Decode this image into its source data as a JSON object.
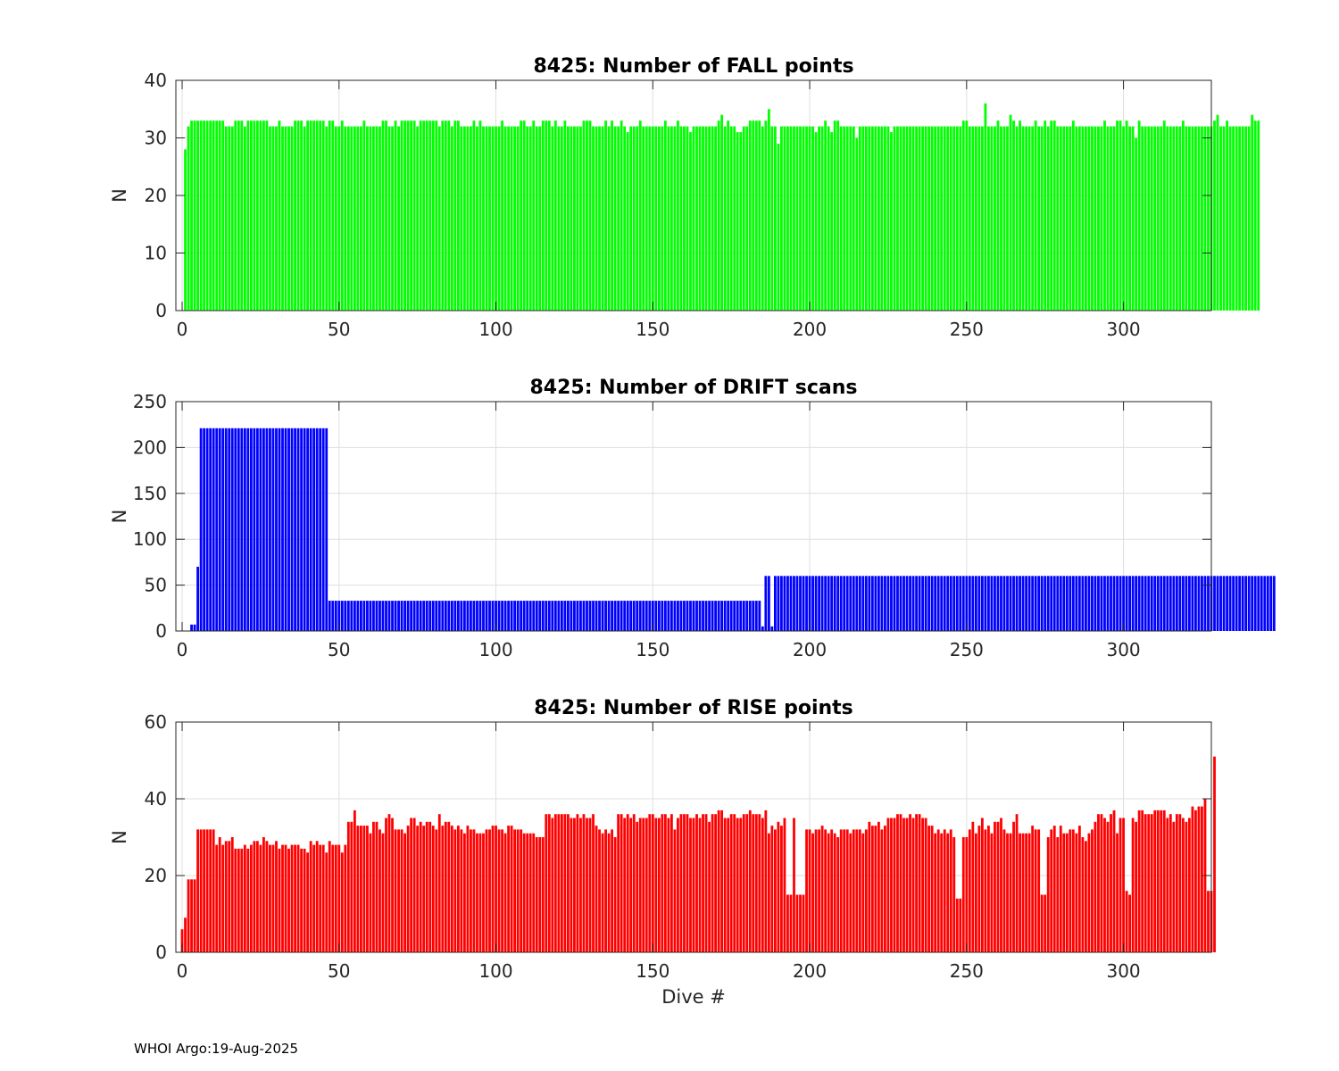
{
  "figure": {
    "footer": "WHOI Argo:19-Aug-2025"
  },
  "chart_data": [
    {
      "type": "bar",
      "id": "fall",
      "title": "8425: Number of FALL points",
      "xlabel": "",
      "ylabel": "N",
      "color": "#00ff00",
      "xlim": [
        -2,
        328
      ],
      "ylim": [
        0,
        40
      ],
      "xticks": [
        0,
        50,
        100,
        150,
        200,
        250,
        300
      ],
      "yticks": [
        0,
        10,
        20,
        30,
        40
      ],
      "grid": true,
      "x_start": 1,
      "values": [
        28,
        32,
        33,
        33,
        33,
        33,
        33,
        33,
        33,
        33,
        33,
        33,
        33,
        32,
        32,
        32,
        33,
        33,
        33,
        32,
        33,
        33,
        33,
        33,
        33,
        33,
        33,
        32,
        32,
        32,
        33,
        32,
        32,
        32,
        32,
        33,
        33,
        33,
        32,
        33,
        33,
        33,
        33,
        33,
        33,
        32,
        33,
        33,
        32,
        32,
        33,
        32,
        32,
        32,
        32,
        32,
        32,
        33,
        32,
        32,
        32,
        32,
        32,
        33,
        33,
        32,
        32,
        33,
        32,
        33,
        33,
        33,
        33,
        33,
        32,
        33,
        33,
        33,
        33,
        33,
        33,
        32,
        33,
        33,
        33,
        32,
        33,
        33,
        32,
        32,
        32,
        32,
        33,
        32,
        33,
        32,
        32,
        32,
        32,
        32,
        32,
        33,
        32,
        32,
        32,
        32,
        32,
        33,
        33,
        32,
        32,
        33,
        32,
        32,
        33,
        33,
        33,
        32,
        33,
        32,
        32,
        33,
        32,
        32,
        32,
        32,
        32,
        33,
        33,
        33,
        32,
        32,
        32,
        32,
        33,
        32,
        33,
        32,
        32,
        33,
        32,
        31,
        32,
        32,
        32,
        33,
        32,
        32,
        32,
        32,
        32,
        32,
        32,
        33,
        32,
        32,
        32,
        33,
        32,
        32,
        32,
        31,
        32,
        32,
        32,
        32,
        32,
        32,
        32,
        32,
        33,
        34,
        32,
        33,
        32,
        32,
        31,
        31,
        32,
        32,
        33,
        33,
        33,
        33,
        32,
        33,
        35,
        32,
        32,
        29,
        32,
        32,
        32,
        32,
        32,
        32,
        32,
        32,
        32,
        32,
        32,
        31,
        32,
        32,
        33,
        32,
        31,
        33,
        33,
        32,
        32,
        32,
        32,
        32,
        30,
        32,
        32,
        32,
        32,
        32,
        32,
        32,
        32,
        32,
        32,
        31,
        32,
        32,
        32,
        32,
        32,
        32,
        32,
        32,
        32,
        32,
        32,
        32,
        32,
        32,
        32,
        32,
        32,
        32,
        32,
        32,
        32,
        32,
        33,
        33,
        32,
        32,
        32,
        32,
        32,
        36,
        32,
        32,
        32,
        33,
        32,
        32,
        32,
        34,
        33,
        32,
        33,
        32,
        32,
        32,
        32,
        33,
        32,
        32,
        33,
        32,
        33,
        33,
        32,
        32,
        32,
        32,
        32,
        33,
        32,
        32,
        32,
        32,
        32,
        32,
        32,
        32,
        32,
        33,
        32,
        32,
        32,
        33,
        33,
        32,
        33,
        32,
        32,
        30,
        33,
        32,
        32,
        32,
        32,
        32,
        32,
        32,
        33,
        32,
        32,
        32,
        32,
        32,
        33,
        32,
        32,
        32,
        32,
        32,
        32,
        32,
        32,
        32,
        33,
        34,
        32,
        32,
        33,
        32,
        32,
        32,
        32,
        32,
        32,
        32,
        34,
        33,
        33
      ]
    },
    {
      "type": "bar",
      "id": "drift",
      "title": "8425: Number of DRIFT scans",
      "xlabel": "",
      "ylabel": "N",
      "color": "#0000ff",
      "xlim": [
        -2,
        328
      ],
      "ylim": [
        0,
        250
      ],
      "xticks": [
        0,
        50,
        100,
        150,
        200,
        250,
        300
      ],
      "yticks": [
        0,
        50,
        100,
        150,
        200,
        250
      ],
      "grid": true,
      "x_start": 1,
      "values": [
        0,
        0,
        7,
        7,
        70,
        221,
        221,
        221,
        221,
        221,
        221,
        221,
        221,
        221,
        221,
        221,
        221,
        221,
        221,
        221,
        221,
        221,
        221,
        221,
        221,
        221,
        221,
        221,
        221,
        221,
        221,
        221,
        221,
        221,
        221,
        221,
        221,
        221,
        221,
        221,
        221,
        221,
        221,
        221,
        221,
        221,
        33,
        33,
        33,
        33,
        33,
        33,
        33,
        33,
        33,
        33,
        33,
        33,
        33,
        33,
        33,
        33,
        33,
        33,
        33,
        33,
        33,
        33,
        33,
        33,
        33,
        33,
        33,
        33,
        33,
        33,
        33,
        33,
        33,
        33,
        33,
        33,
        33,
        33,
        33,
        33,
        33,
        33,
        33,
        33,
        33,
        33,
        33,
        33,
        33,
        33,
        33,
        33,
        33,
        33,
        33,
        33,
        33,
        33,
        33,
        33,
        33,
        33,
        33,
        33,
        33,
        33,
        33,
        33,
        33,
        33,
        33,
        33,
        33,
        33,
        33,
        33,
        33,
        33,
        33,
        33,
        33,
        33,
        33,
        33,
        33,
        33,
        33,
        33,
        33,
        33,
        33,
        33,
        33,
        33,
        33,
        33,
        33,
        33,
        33,
        33,
        33,
        33,
        33,
        33,
        33,
        33,
        33,
        33,
        33,
        33,
        33,
        33,
        33,
        33,
        33,
        33,
        33,
        33,
        33,
        33,
        33,
        33,
        33,
        33,
        33,
        33,
        33,
        33,
        33,
        33,
        33,
        33,
        33,
        33,
        33,
        33,
        33,
        33,
        5,
        60,
        60,
        5,
        60,
        60,
        60,
        60,
        60,
        60,
        60,
        60,
        60,
        60,
        60,
        60,
        60,
        60,
        60,
        60,
        60,
        60,
        60,
        60,
        60,
        60,
        60,
        60,
        60,
        60,
        60,
        60,
        60,
        60,
        60,
        60,
        60,
        60,
        60,
        60,
        60,
        60,
        60,
        60,
        60,
        60,
        60,
        60,
        60,
        60,
        60,
        60,
        60,
        60,
        60,
        60,
        60,
        60,
        60,
        60,
        60,
        60,
        60,
        60,
        60,
        60,
        60,
        60,
        60,
        60,
        60,
        60,
        60,
        60,
        60,
        60,
        60,
        60,
        60,
        60,
        60,
        60,
        60,
        60,
        60,
        60,
        60,
        60,
        60,
        60,
        60,
        60,
        60,
        60,
        60,
        60,
        60,
        60,
        60,
        60,
        60,
        60,
        60,
        60,
        60,
        60,
        60,
        60,
        60,
        60,
        60,
        60,
        60,
        60,
        60,
        60,
        60,
        60,
        60,
        60,
        60,
        60,
        60,
        60,
        60,
        60,
        60,
        60,
        60,
        60,
        60,
        60,
        60,
        60,
        60,
        60,
        60,
        60,
        60,
        60,
        60,
        60,
        60,
        60,
        60,
        60,
        60,
        60,
        60,
        60,
        60,
        60,
        60,
        60,
        60,
        60,
        60,
        60,
        60,
        60,
        60,
        60,
        60,
        60
      ]
    },
    {
      "type": "bar",
      "id": "rise",
      "title": "8425: Number of RISE points",
      "xlabel": "Dive #",
      "ylabel": "N",
      "color": "#ff0000",
      "xlim": [
        -2,
        328
      ],
      "ylim": [
        0,
        60
      ],
      "xticks": [
        0,
        50,
        100,
        150,
        200,
        250,
        300
      ],
      "yticks": [
        0,
        20,
        40,
        60
      ],
      "grid": true,
      "x_start": 0,
      "values": [
        6,
        9,
        19,
        19,
        19,
        32,
        32,
        32,
        32,
        32,
        32,
        28,
        30,
        28,
        29,
        29,
        30,
        27,
        27,
        27,
        28,
        27,
        28,
        29,
        29,
        28,
        30,
        29,
        28,
        28,
        29,
        27,
        28,
        28,
        27,
        28,
        28,
        28,
        27,
        27,
        26,
        29,
        28,
        29,
        28,
        28,
        26,
        29,
        28,
        28,
        28,
        26,
        28,
        34,
        34,
        37,
        33,
        33,
        33,
        33,
        31,
        34,
        34,
        32,
        31,
        35,
        36,
        35,
        32,
        32,
        32,
        31,
        33,
        35,
        35,
        33,
        34,
        33,
        34,
        34,
        33,
        32,
        36,
        33,
        34,
        34,
        33,
        32,
        33,
        32,
        31,
        33,
        32,
        32,
        31,
        31,
        31,
        32,
        32,
        33,
        33,
        32,
        32,
        31,
        33,
        33,
        32,
        32,
        32,
        31,
        31,
        31,
        31,
        30,
        30,
        30,
        36,
        36,
        35,
        36,
        36,
        36,
        36,
        36,
        35,
        35,
        36,
        35,
        36,
        35,
        35,
        36,
        33,
        32,
        31,
        32,
        31,
        32,
        30,
        36,
        36,
        35,
        36,
        35,
        36,
        34,
        35,
        35,
        35,
        36,
        36,
        35,
        35,
        36,
        36,
        35,
        36,
        32,
        35,
        36,
        36,
        36,
        35,
        35,
        36,
        35,
        36,
        36,
        34,
        36,
        36,
        37,
        37,
        35,
        35,
        36,
        36,
        35,
        35,
        36,
        36,
        37,
        36,
        36,
        36,
        35,
        37,
        31,
        33,
        32,
        34,
        33,
        35,
        15,
        15,
        35,
        15,
        15,
        15,
        32,
        32,
        31,
        32,
        32,
        33,
        32,
        31,
        32,
        31,
        30,
        32,
        32,
        32,
        31,
        32,
        32,
        32,
        31,
        32,
        34,
        33,
        33,
        34,
        32,
        33,
        35,
        35,
        35,
        36,
        36,
        35,
        35,
        36,
        35,
        36,
        36,
        35,
        35,
        33,
        33,
        31,
        32,
        31,
        32,
        31,
        32,
        30,
        14,
        14,
        30,
        30,
        32,
        34,
        31,
        33,
        35,
        32,
        33,
        31,
        34,
        34,
        35,
        32,
        31,
        31,
        34,
        36,
        31,
        31,
        31,
        31,
        33,
        32,
        32,
        15,
        15,
        30,
        32,
        33,
        30,
        33,
        31,
        31,
        32,
        32,
        31,
        33,
        30,
        29,
        31,
        32,
        34,
        36,
        36,
        35,
        34,
        36,
        37,
        31,
        35,
        35,
        16,
        15,
        35,
        34,
        37,
        37,
        36,
        36,
        36,
        37,
        37,
        37,
        37,
        35,
        36,
        34,
        36,
        36,
        35,
        34,
        35,
        38,
        37,
        38,
        38,
        40,
        16,
        16,
        51
      ]
    }
  ]
}
